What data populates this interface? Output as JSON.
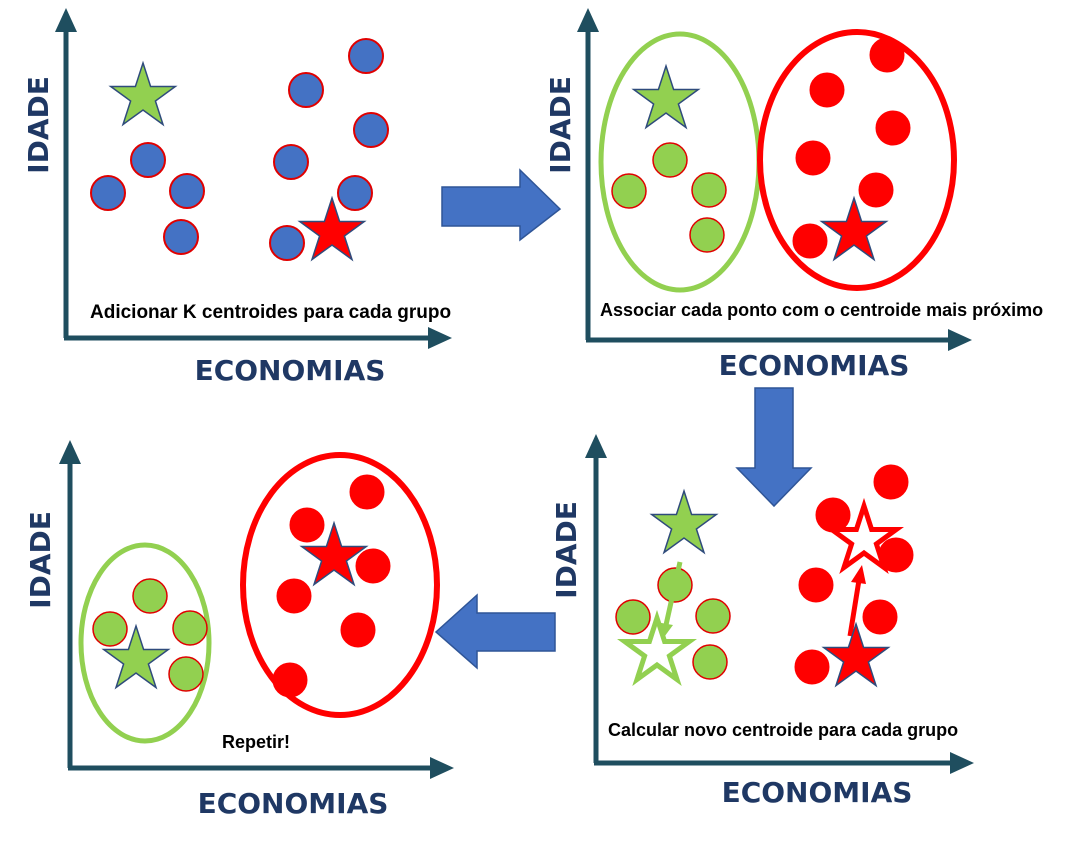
{
  "axis": {
    "x_label": "ECONOMIAS",
    "y_label": "IDADE"
  },
  "colors": {
    "axis": "#1f4e5f",
    "axis_text": "#1f3864",
    "blue_point": "#4472c4",
    "point_outline": "#e00000",
    "green": "#92d050",
    "green_stroke": "#8ccc50",
    "red": "#ff0000",
    "star_outline": "#2f4b7c",
    "flow_arrow": "#4472c4"
  },
  "icons": [
    "star-icon",
    "circle-icon",
    "arrow-right-icon",
    "arrow-down-icon",
    "arrow-left-icon"
  ],
  "panels": [
    {
      "id": "step1",
      "caption": "Adicionar  K centroides para cada grupo"
    },
    {
      "id": "step2",
      "caption": "Associar cada ponto com o centroide  mais próximo"
    },
    {
      "id": "step3",
      "caption": "Calcular novo centroide  para cada grupo"
    },
    {
      "id": "step4",
      "caption": "Repetir!"
    }
  ]
}
